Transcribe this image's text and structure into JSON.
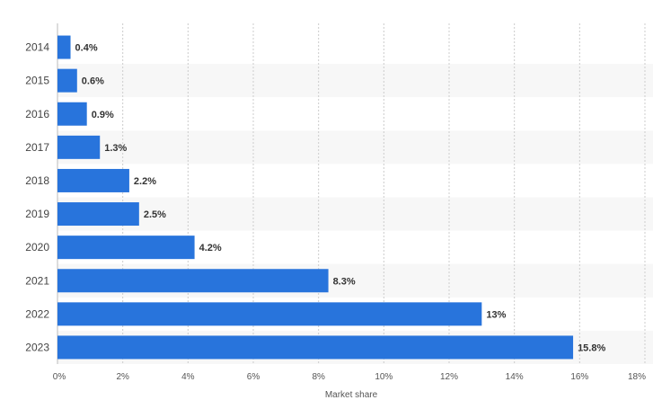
{
  "chart_data": {
    "type": "bar",
    "orientation": "horizontal",
    "categories": [
      "2014",
      "2015",
      "2016",
      "2017",
      "2018",
      "2019",
      "2020",
      "2021",
      "2022",
      "2023"
    ],
    "values": [
      0.4,
      0.6,
      0.9,
      1.3,
      2.2,
      2.5,
      4.2,
      8.3,
      13,
      15.8
    ],
    "value_labels": [
      "0.4%",
      "0.6%",
      "0.9%",
      "1.3%",
      "2.2%",
      "2.5%",
      "4.2%",
      "8.3%",
      "13%",
      "15.8%"
    ],
    "title": "",
    "xlabel": "Market share",
    "ylabel": "",
    "xlim": [
      0,
      18
    ],
    "x_ticks": [
      0,
      2,
      4,
      6,
      8,
      10,
      12,
      14,
      16,
      18
    ],
    "x_tick_labels": [
      "0%",
      "2%",
      "4%",
      "6%",
      "8%",
      "10%",
      "12%",
      "14%",
      "16%",
      "18%"
    ],
    "grid": true,
    "legend": false,
    "bar_color": "#2874dc",
    "band_color": "#f7f7f7"
  }
}
